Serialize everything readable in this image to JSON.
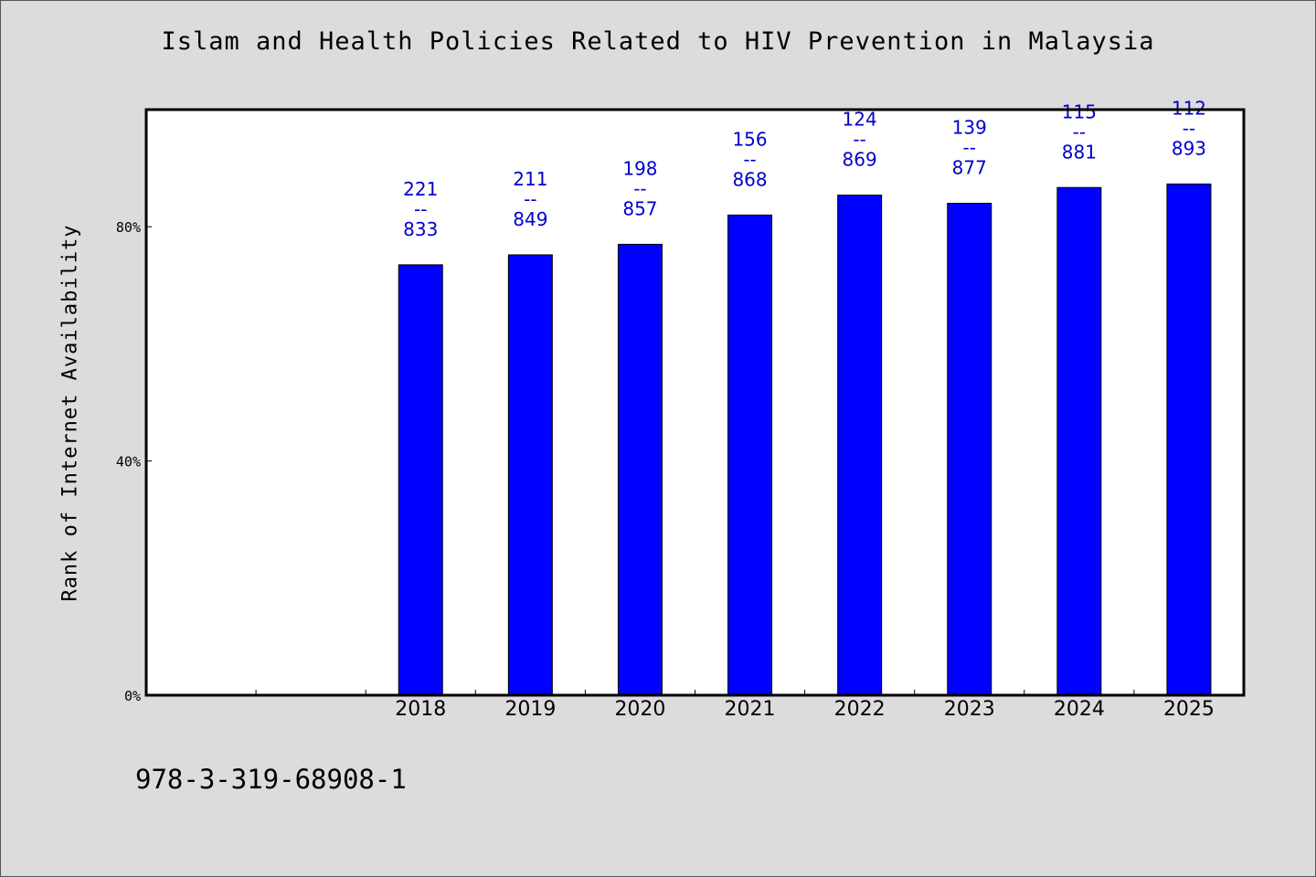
{
  "chart_data": {
    "type": "bar",
    "title": "Islam and Health Policies Related to HIV Prevention in Malaysia",
    "ylabel": "Rank of Internet Availability",
    "xlabel": "",
    "ylim": [
      0,
      100
    ],
    "y_ticks": [
      {
        "value": 0,
        "label": "0%"
      },
      {
        "value": 40,
        "label": "40%"
      },
      {
        "value": 80,
        "label": "80%"
      }
    ],
    "categories": [
      "2018",
      "2019",
      "2020",
      "2021",
      "2022",
      "2023",
      "2024",
      "2025"
    ],
    "values": [
      73.5,
      75.2,
      77.0,
      82.0,
      85.4,
      84.0,
      86.7,
      87.3
    ],
    "data_labels": [
      {
        "top": "221",
        "sep": "--",
        "bottom": "833"
      },
      {
        "top": "211",
        "sep": "--",
        "bottom": "849"
      },
      {
        "top": "198",
        "sep": "--",
        "bottom": "857"
      },
      {
        "top": "156",
        "sep": "--",
        "bottom": "868"
      },
      {
        "top": "124",
        "sep": "--",
        "bottom": "869"
      },
      {
        "top": "139",
        "sep": "--",
        "bottom": "877"
      },
      {
        "top": "115",
        "sep": "--",
        "bottom": "881"
      },
      {
        "top": "112",
        "sep": "--",
        "bottom": "893"
      }
    ],
    "bar_color": "#0000ff",
    "label_color": "#0000cc",
    "grid": false,
    "legend": "none"
  },
  "footer": {
    "code": "978-3-319-68908-1"
  },
  "colors": {
    "background": "#dcdcdc",
    "plot_background": "#ffffff"
  }
}
